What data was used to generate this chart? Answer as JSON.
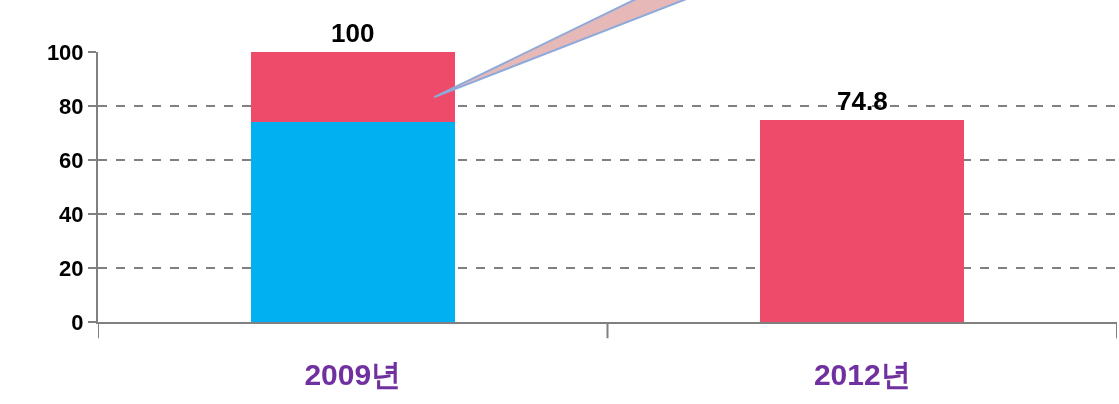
{
  "chart_data": {
    "type": "bar",
    "stacked": true,
    "categories": [
      "2009년",
      "2012년"
    ],
    "series": [
      {
        "color": "#00b0f0",
        "values": [
          74,
          null
        ]
      },
      {
        "color": "#ee4b6a",
        "values": [
          26,
          74.8
        ]
      }
    ],
    "totals": [
      "100",
      "74.8"
    ],
    "ylim": [
      0,
      100
    ],
    "yticks": [
      0,
      20,
      40,
      60,
      80,
      100
    ],
    "grid": "y"
  }
}
